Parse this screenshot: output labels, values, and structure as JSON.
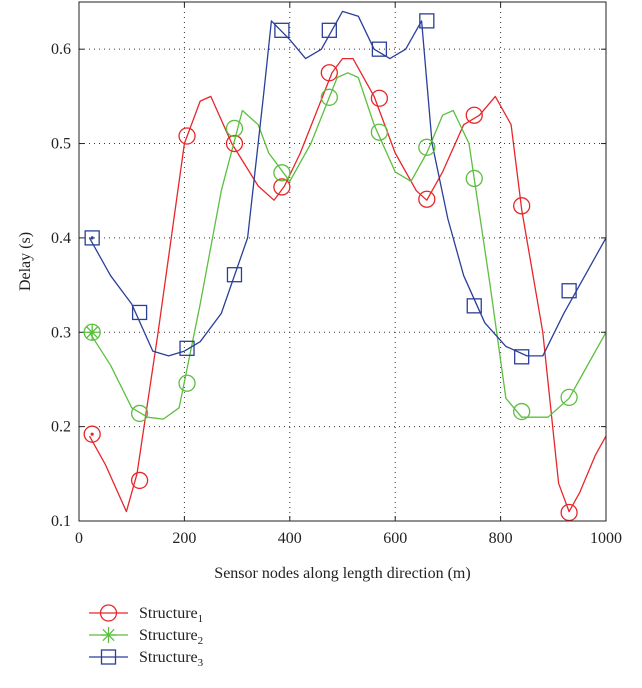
{
  "chart_data": {
    "type": "line",
    "xlabel": "Sensor nodes along length direction (m)",
    "ylabel": "Delay (s)",
    "xlim": [
      0,
      1000
    ],
    "ylim": [
      0.1,
      0.65
    ],
    "xticks": [
      "0",
      "200",
      "400",
      "600",
      "800",
      "1000"
    ],
    "yticks": [
      "0.1",
      "0.2",
      "0.3",
      "0.4",
      "0.5",
      "0.6"
    ],
    "grid": true,
    "legend_position": "below",
    "series": [
      {
        "name": "Structure",
        "subscript": "1",
        "color": "#e8262a",
        "marker": "circle",
        "x": [
          20,
          50,
          90,
          110,
          150,
          200,
          230,
          250,
          290,
          340,
          370,
          390,
          420,
          480,
          500,
          520,
          560,
          600,
          640,
          660,
          690,
          730,
          760,
          790,
          820,
          840,
          880,
          910,
          930,
          950,
          980,
          1000
        ],
        "y": [
          0.19,
          0.16,
          0.11,
          0.15,
          0.3,
          0.5,
          0.545,
          0.55,
          0.5,
          0.455,
          0.44,
          0.455,
          0.49,
          0.575,
          0.59,
          0.59,
          0.55,
          0.49,
          0.45,
          0.44,
          0.47,
          0.52,
          0.53,
          0.55,
          0.52,
          0.43,
          0.3,
          0.14,
          0.11,
          0.13,
          0.17,
          0.19
        ],
        "markers_x": [
          25,
          115,
          205,
          295,
          385,
          475,
          570,
          660,
          750,
          840,
          930
        ],
        "markers_y": [
          0.192,
          0.143,
          0.508,
          0.5,
          0.454,
          0.575,
          0.548,
          0.441,
          0.53,
          0.434,
          0.109
        ]
      },
      {
        "name": "Structure",
        "subscript": "2",
        "color": "#5cbf3f",
        "marker": "asterisk-then-circle",
        "x": [
          20,
          60,
          100,
          130,
          160,
          190,
          230,
          270,
          310,
          340,
          360,
          400,
          440,
          490,
          510,
          530,
          560,
          600,
          630,
          660,
          690,
          710,
          740,
          780,
          810,
          840,
          860,
          890,
          930,
          960,
          1000
        ],
        "y": [
          0.3,
          0.265,
          0.22,
          0.21,
          0.208,
          0.22,
          0.33,
          0.45,
          0.535,
          0.52,
          0.49,
          0.46,
          0.5,
          0.57,
          0.575,
          0.57,
          0.52,
          0.47,
          0.46,
          0.49,
          0.53,
          0.535,
          0.5,
          0.35,
          0.23,
          0.21,
          0.21,
          0.21,
          0.23,
          0.26,
          0.3
        ],
        "markers_x": [
          25,
          115,
          205,
          295,
          385,
          475,
          570,
          660,
          750,
          840,
          930
        ],
        "markers_y": [
          0.3,
          0.214,
          0.246,
          0.516,
          0.469,
          0.549,
          0.512,
          0.496,
          0.463,
          0.216,
          0.231
        ]
      },
      {
        "name": "Structure",
        "subscript": "3",
        "color": "#2a3f9a",
        "marker": "square",
        "x": [
          20,
          60,
          100,
          140,
          170,
          200,
          230,
          270,
          320,
          350,
          365,
          400,
          430,
          460,
          500,
          530,
          560,
          590,
          620,
          650,
          670,
          700,
          730,
          770,
          810,
          850,
          880,
          920,
          960,
          1000
        ],
        "y": [
          0.4,
          0.36,
          0.33,
          0.28,
          0.275,
          0.28,
          0.29,
          0.32,
          0.4,
          0.55,
          0.63,
          0.61,
          0.59,
          0.6,
          0.64,
          0.635,
          0.6,
          0.59,
          0.6,
          0.63,
          0.5,
          0.42,
          0.36,
          0.31,
          0.285,
          0.275,
          0.275,
          0.32,
          0.36,
          0.4
        ],
        "markers_x": [
          25,
          115,
          205,
          295,
          385,
          475,
          570,
          660,
          750,
          840,
          930
        ],
        "markers_y": [
          0.4,
          0.321,
          0.283,
          0.361,
          0.62,
          0.62,
          0.6,
          0.63,
          0.328,
          0.274,
          0.344
        ]
      }
    ]
  }
}
